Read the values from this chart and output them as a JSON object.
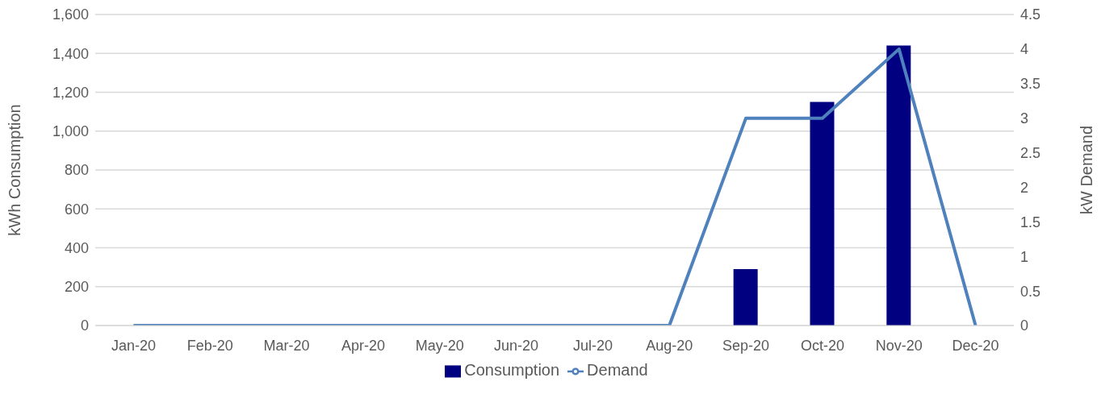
{
  "chart_data": {
    "type": "bar",
    "ylabel": "kWh Consumption",
    "y2label": "kW Demand",
    "categories": [
      "Jan-20",
      "Feb-20",
      "Mar-20",
      "Apr-20",
      "May-20",
      "Jun-20",
      "Jul-20",
      "Aug-20",
      "Sep-20",
      "Oct-20",
      "Nov-20",
      "Dec-20"
    ],
    "series": [
      {
        "name": "Consumption",
        "color": "#000080",
        "values": [
          0,
          0,
          0,
          0,
          0,
          0,
          0,
          0,
          290,
          1150,
          1440,
          0
        ]
      },
      {
        "name": "Demand",
        "type": "line",
        "axis": "y2",
        "color": "#4f81bd",
        "values": [
          0,
          0,
          0,
          0,
          0,
          0,
          0,
          0,
          3,
          3,
          4,
          0
        ]
      }
    ],
    "ylim": [
      0,
      1600
    ],
    "yticks": [
      0,
      200,
      400,
      600,
      800,
      {
        "value": 1000,
        "label": "1,000"
      },
      {
        "value": 1200,
        "label": "1,200"
      },
      {
        "value": 1400,
        "label": "1,400"
      },
      {
        "value": 1600,
        "label": "1,600"
      }
    ],
    "y2lim": [
      0,
      4.5
    ],
    "y2ticks": [
      0,
      0.5,
      1,
      1.5,
      2,
      2.5,
      3,
      3.5,
      4,
      4.5
    ],
    "grid": "y",
    "legend": "bottom"
  }
}
